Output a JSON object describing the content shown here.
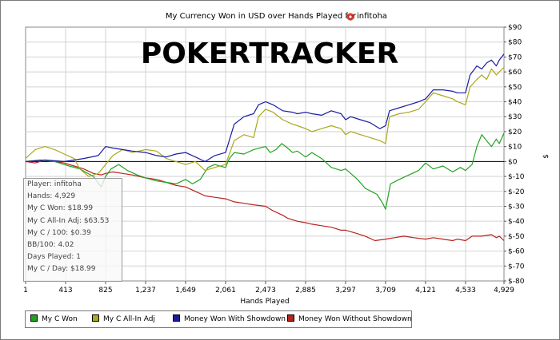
{
  "chart_data": {
    "type": "line",
    "title": "My Currency Won in USD over Hands Played for",
    "player_name": "infitoha",
    "xlabel": "Hands Played",
    "ylabel": "$",
    "watermark": "POKERTRACKER",
    "xlim": [
      1,
      4929
    ],
    "ylim": [
      -80,
      90
    ],
    "grid": true,
    "x_ticks": [
      1,
      413,
      825,
      1237,
      1649,
      2061,
      2473,
      2885,
      3297,
      3709,
      4121,
      4533,
      4929
    ],
    "x_tick_labels": [
      "1",
      "413",
      "825",
      "1,237",
      "1,649",
      "2,061",
      "2,473",
      "2,885",
      "3,297",
      "3,709",
      "4,121",
      "4,533",
      "4,929"
    ],
    "y_ticks": [
      90,
      80,
      70,
      60,
      50,
      40,
      30,
      20,
      10,
      0,
      -10,
      -20,
      -30,
      -40,
      -50,
      -60,
      -70,
      -80
    ],
    "y_tick_labels": [
      "$90",
      "$80",
      "$70",
      "$60",
      "$50",
      "$40",
      "$30",
      "$20",
      "$10",
      "$0",
      "$-10",
      "$-20",
      "$-30",
      "$-40",
      "$-50",
      "$-60",
      "$-70",
      "$-80"
    ],
    "legend_position": "bottom",
    "series": [
      {
        "name": "My C Won",
        "color": "#22a322",
        "points": [
          [
            1,
            0
          ],
          [
            150,
            1
          ],
          [
            300,
            0
          ],
          [
            450,
            -3
          ],
          [
            560,
            -5
          ],
          [
            700,
            -10
          ],
          [
            780,
            -17
          ],
          [
            825,
            -10
          ],
          [
            880,
            -5
          ],
          [
            960,
            -2
          ],
          [
            1050,
            -6
          ],
          [
            1150,
            -9
          ],
          [
            1237,
            -11
          ],
          [
            1350,
            -13
          ],
          [
            1450,
            -14
          ],
          [
            1550,
            -15
          ],
          [
            1649,
            -12
          ],
          [
            1720,
            -15
          ],
          [
            1800,
            -12
          ],
          [
            1880,
            -4
          ],
          [
            1950,
            -2
          ],
          [
            2000,
            -3
          ],
          [
            2061,
            -4
          ],
          [
            2100,
            2
          ],
          [
            2150,
            6
          ],
          [
            2250,
            5
          ],
          [
            2350,
            8
          ],
          [
            2473,
            10
          ],
          [
            2520,
            6
          ],
          [
            2580,
            8
          ],
          [
            2640,
            12
          ],
          [
            2700,
            9
          ],
          [
            2750,
            6
          ],
          [
            2800,
            7
          ],
          [
            2885,
            3
          ],
          [
            2950,
            6
          ],
          [
            3050,
            2
          ],
          [
            3150,
            -4
          ],
          [
            3250,
            -6
          ],
          [
            3297,
            -5
          ],
          [
            3350,
            -8
          ],
          [
            3420,
            -12
          ],
          [
            3500,
            -18
          ],
          [
            3560,
            -20
          ],
          [
            3620,
            -22
          ],
          [
            3680,
            -28
          ],
          [
            3709,
            -32
          ],
          [
            3760,
            -15
          ],
          [
            3850,
            -12
          ],
          [
            3950,
            -9
          ],
          [
            4050,
            -6
          ],
          [
            4121,
            -1
          ],
          [
            4200,
            -5
          ],
          [
            4300,
            -3
          ],
          [
            4400,
            -7
          ],
          [
            4480,
            -4
          ],
          [
            4533,
            -6
          ],
          [
            4600,
            -2
          ],
          [
            4650,
            10
          ],
          [
            4700,
            18
          ],
          [
            4750,
            14
          ],
          [
            4800,
            10
          ],
          [
            4850,
            15
          ],
          [
            4880,
            12
          ],
          [
            4929,
            19
          ]
        ]
      },
      {
        "name": "My C All-In Adj",
        "color": "#aaa81c",
        "points": [
          [
            1,
            2
          ],
          [
            100,
            8
          ],
          [
            200,
            10
          ],
          [
            300,
            8
          ],
          [
            400,
            5
          ],
          [
            500,
            2
          ],
          [
            560,
            -5
          ],
          [
            650,
            -10
          ],
          [
            750,
            -8
          ],
          [
            825,
            -2
          ],
          [
            900,
            4
          ],
          [
            1000,
            8
          ],
          [
            1100,
            6
          ],
          [
            1237,
            8
          ],
          [
            1350,
            7
          ],
          [
            1450,
            2
          ],
          [
            1550,
            0
          ],
          [
            1649,
            -2
          ],
          [
            1750,
            0
          ],
          [
            1850,
            -6
          ],
          [
            1950,
            -4
          ],
          [
            2061,
            -2
          ],
          [
            2150,
            14
          ],
          [
            2250,
            18
          ],
          [
            2350,
            16
          ],
          [
            2400,
            30
          ],
          [
            2473,
            35
          ],
          [
            2550,
            33
          ],
          [
            2650,
            28
          ],
          [
            2750,
            25
          ],
          [
            2800,
            24
          ],
          [
            2885,
            22
          ],
          [
            2950,
            20
          ],
          [
            3050,
            22
          ],
          [
            3150,
            24
          ],
          [
            3250,
            22
          ],
          [
            3297,
            18
          ],
          [
            3350,
            20
          ],
          [
            3450,
            18
          ],
          [
            3550,
            16
          ],
          [
            3650,
            14
          ],
          [
            3709,
            12
          ],
          [
            3750,
            30
          ],
          [
            3850,
            32
          ],
          [
            3950,
            33
          ],
          [
            4050,
            35
          ],
          [
            4121,
            40
          ],
          [
            4200,
            46
          ],
          [
            4300,
            44
          ],
          [
            4400,
            42
          ],
          [
            4450,
            40
          ],
          [
            4533,
            38
          ],
          [
            4580,
            50
          ],
          [
            4650,
            55
          ],
          [
            4700,
            58
          ],
          [
            4750,
            55
          ],
          [
            4800,
            62
          ],
          [
            4850,
            58
          ],
          [
            4880,
            60
          ],
          [
            4929,
            63
          ]
        ]
      },
      {
        "name": "Money Won With Showdown",
        "color": "#1b1ba2",
        "points": [
          [
            1,
            0
          ],
          [
            200,
            1
          ],
          [
            400,
            0
          ],
          [
            600,
            2
          ],
          [
            750,
            4
          ],
          [
            825,
            10
          ],
          [
            900,
            9
          ],
          [
            1000,
            8
          ],
          [
            1100,
            7
          ],
          [
            1237,
            6
          ],
          [
            1350,
            4
          ],
          [
            1450,
            3
          ],
          [
            1550,
            5
          ],
          [
            1649,
            6
          ],
          [
            1750,
            3
          ],
          [
            1850,
            0
          ],
          [
            1950,
            4
          ],
          [
            2061,
            6
          ],
          [
            2150,
            25
          ],
          [
            2250,
            30
          ],
          [
            2350,
            32
          ],
          [
            2400,
            38
          ],
          [
            2473,
            40
          ],
          [
            2550,
            38
          ],
          [
            2650,
            34
          ],
          [
            2750,
            33
          ],
          [
            2800,
            32
          ],
          [
            2885,
            33
          ],
          [
            2950,
            32
          ],
          [
            3050,
            31
          ],
          [
            3150,
            34
          ],
          [
            3250,
            32
          ],
          [
            3297,
            28
          ],
          [
            3350,
            30
          ],
          [
            3450,
            28
          ],
          [
            3550,
            26
          ],
          [
            3650,
            22
          ],
          [
            3709,
            24
          ],
          [
            3750,
            34
          ],
          [
            3850,
            36
          ],
          [
            3950,
            38
          ],
          [
            4050,
            40
          ],
          [
            4121,
            42
          ],
          [
            4200,
            48
          ],
          [
            4300,
            48
          ],
          [
            4400,
            47
          ],
          [
            4450,
            46
          ],
          [
            4533,
            46
          ],
          [
            4580,
            58
          ],
          [
            4650,
            64
          ],
          [
            4700,
            62
          ],
          [
            4750,
            66
          ],
          [
            4800,
            68
          ],
          [
            4850,
            64
          ],
          [
            4880,
            68
          ],
          [
            4929,
            72
          ]
        ]
      },
      {
        "name": "Money Won Without Showdown",
        "color": "#b8231d",
        "points": [
          [
            1,
            0
          ],
          [
            100,
            -1
          ],
          [
            200,
            1
          ],
          [
            300,
            0
          ],
          [
            400,
            -1
          ],
          [
            500,
            -3
          ],
          [
            600,
            -5
          ],
          [
            700,
            -8
          ],
          [
            780,
            -9
          ],
          [
            825,
            -8
          ],
          [
            900,
            -7
          ],
          [
            1000,
            -8
          ],
          [
            1100,
            -9
          ],
          [
            1237,
            -11
          ],
          [
            1350,
            -12
          ],
          [
            1450,
            -14
          ],
          [
            1550,
            -16
          ],
          [
            1649,
            -17
          ],
          [
            1750,
            -20
          ],
          [
            1850,
            -23
          ],
          [
            1950,
            -24
          ],
          [
            2061,
            -25
          ],
          [
            2150,
            -27
          ],
          [
            2250,
            -28
          ],
          [
            2350,
            -29
          ],
          [
            2473,
            -30
          ],
          [
            2550,
            -33
          ],
          [
            2650,
            -36
          ],
          [
            2700,
            -38
          ],
          [
            2750,
            -39
          ],
          [
            2800,
            -40
          ],
          [
            2885,
            -41
          ],
          [
            2950,
            -42
          ],
          [
            3050,
            -43
          ],
          [
            3150,
            -44
          ],
          [
            3250,
            -46
          ],
          [
            3297,
            -46
          ],
          [
            3400,
            -48
          ],
          [
            3500,
            -50
          ],
          [
            3600,
            -53
          ],
          [
            3709,
            -52
          ],
          [
            3800,
            -51
          ],
          [
            3900,
            -50
          ],
          [
            4000,
            -51
          ],
          [
            4121,
            -52
          ],
          [
            4200,
            -51
          ],
          [
            4300,
            -52
          ],
          [
            4400,
            -53
          ],
          [
            4450,
            -52
          ],
          [
            4533,
            -53
          ],
          [
            4600,
            -50
          ],
          [
            4700,
            -50
          ],
          [
            4800,
            -49
          ],
          [
            4850,
            -51
          ],
          [
            4880,
            -50
          ],
          [
            4929,
            -53
          ]
        ]
      }
    ]
  },
  "info_panel": [
    "Player: infitoha",
    "Hands: 4,929",
    "My C Won: $18.99",
    "My C All-In Adj: $63.53",
    "My C / 100: $0.39",
    "BB/100: 4.02",
    "Days Played: 1",
    "My C / Day: $18.99"
  ],
  "legend": [
    {
      "label": "My C Won",
      "color": "#22a322"
    },
    {
      "label": "My C All-In Adj",
      "color": "#aaa81c"
    },
    {
      "label": "Money Won With Showdown",
      "color": "#1b1ba2"
    },
    {
      "label": "Money Won Without Showdown",
      "color": "#b8231d"
    }
  ]
}
